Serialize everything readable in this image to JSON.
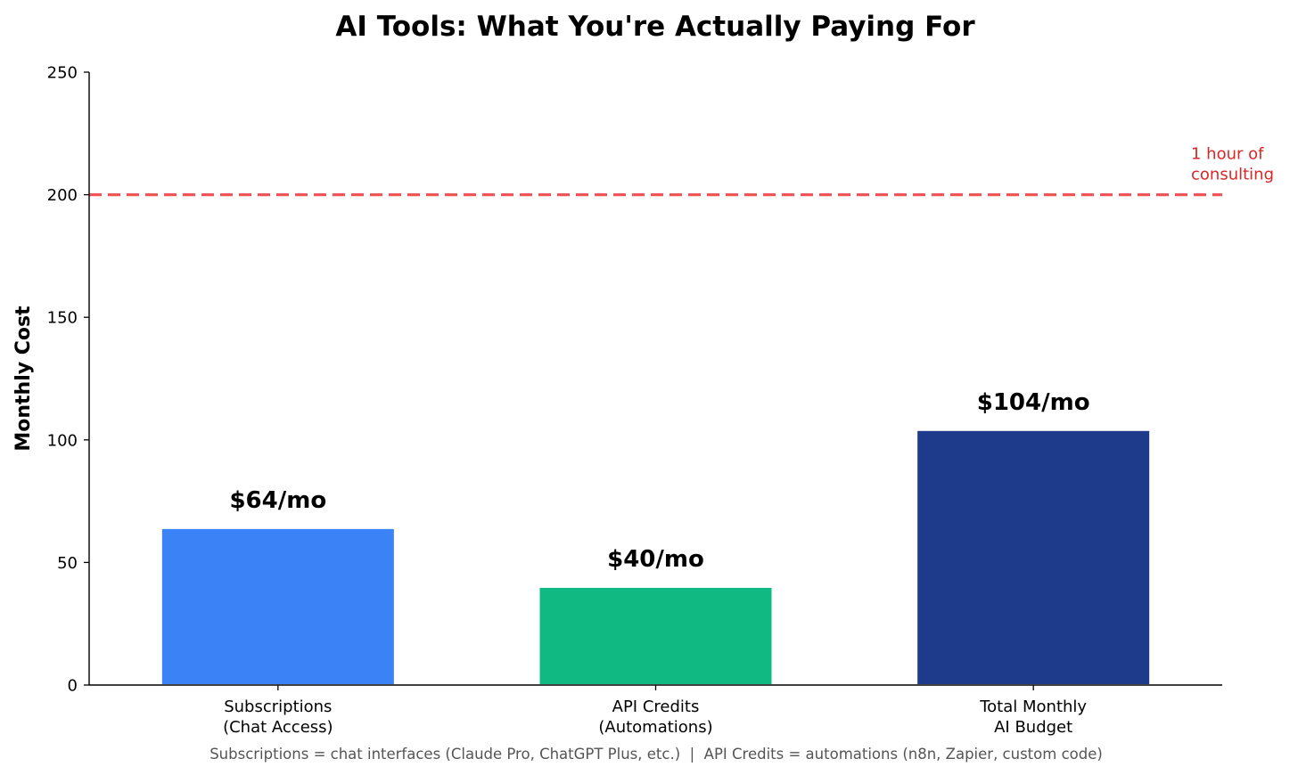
{
  "chart_data": {
    "type": "bar",
    "title": "AI Tools: What You're Actually Paying For",
    "xlabel": "",
    "ylabel": "Monthly Cost",
    "ylim": [
      0,
      250
    ],
    "yticks": [
      "0",
      "50",
      "100",
      "150",
      "200",
      "250"
    ],
    "grid": false,
    "categories": [
      [
        "Subscriptions",
        "(Chat Access)"
      ],
      [
        "API Credits",
        "(Automations)"
      ],
      [
        "Total Monthly",
        "AI Budget"
      ]
    ],
    "values": [
      64,
      40,
      104
    ],
    "value_labels": [
      "$64/mo",
      "$40/mo",
      "$104/mo"
    ],
    "colors": [
      "#3b82f6",
      "#10b981",
      "#1e3a8a"
    ],
    "reference_line": {
      "value": 200,
      "label_lines": [
        "1 hour of",
        "consulting"
      ],
      "color": "#ef4444",
      "label_color": "#dc2626",
      "style": "dashed"
    },
    "caption": "Subscriptions = chat interfaces (Claude Pro, ChatGPT Plus, etc.)  |  API Credits = automations (n8n, Zapier, custom code)"
  }
}
